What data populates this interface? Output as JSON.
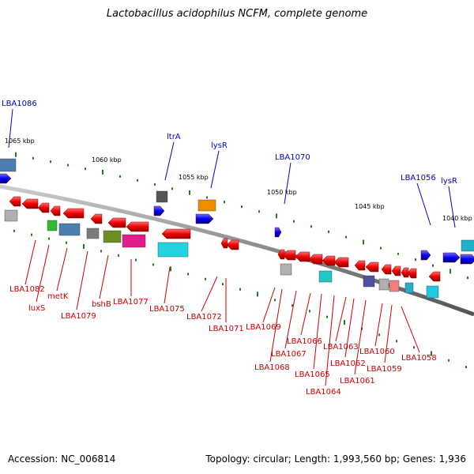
{
  "title": "Lactobacillus acidophilus NCFM, complete genome",
  "footer": {
    "accession": "Accession: NC_006814",
    "topology": "Topology: circular; Length: 1,993,560 bp; Genes: 1,936"
  },
  "colors": {
    "backbone": "#888888",
    "tick": "#1f7a1f",
    "label_top": "#0000cc",
    "label_bottom": "#cc0000",
    "forward": "#0000ee",
    "reverse": "#ee0000"
  },
  "tick_labels": [
    "1065 kbp",
    "1060 kbp",
    "1055 kbp",
    "1050 kbp",
    "1045 kbp",
    "1040 kbp"
  ],
  "top_labels": [
    "LBA1086",
    "ltrA",
    "lysR",
    "LBA1070",
    "LBA1056",
    "lysR"
  ],
  "bottom_labels": [
    "LBA1082",
    "luxS",
    "metK",
    "LBA1079",
    "bshB",
    "LBA1077",
    "LBA1075",
    "LBA1072",
    "LBA1071",
    "LBA1069",
    "LBA1068",
    "LBA1067",
    "LBA1066",
    "LBA1065",
    "LBA1064",
    "LBA1063",
    "LBA1062",
    "LBA1061",
    "LBA1060",
    "LBA1059",
    "LBA1058"
  ]
}
